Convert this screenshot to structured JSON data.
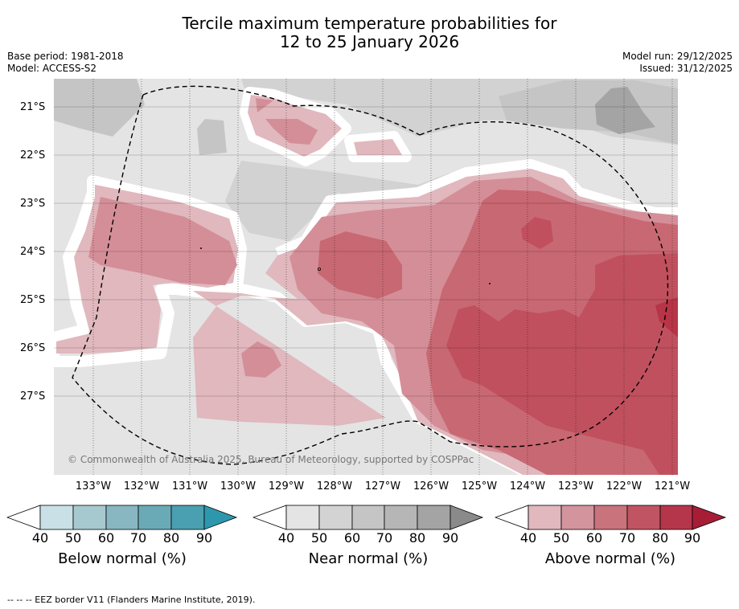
{
  "title": {
    "line1": "Tercile maximum temperature probabilities for",
    "line2": "12 to 25 January 2026"
  },
  "meta": {
    "base_period": "Base period: 1981-2018",
    "model": "Model: ACCESS-S2",
    "model_run": "Model run: 29/12/2025",
    "issued": "Issued: 31/12/2025"
  },
  "map": {
    "lat_labels": [
      "21°S",
      "22°S",
      "23°S",
      "24°S",
      "25°S",
      "26°S",
      "27°S"
    ],
    "lon_labels": [
      "133°W",
      "132°W",
      "131°W",
      "130°W",
      "129°W",
      "128°W",
      "127°W",
      "126°W",
      "125°W",
      "124°W",
      "123°W",
      "122°W",
      "121°W"
    ],
    "copyright": "© Commonwealth of Australia 2025, Bureau of Meteorology, supported by COSPPac",
    "colors": {
      "near_background": "#e4e4e4",
      "near_50": "#d2d2d2",
      "near_60": "#c5c5c5",
      "near_80": "#a4a4a4",
      "above_40": "#e0b8be",
      "above_50": "#d48e98",
      "above_60": "#c86873",
      "above_70": "#c0505e",
      "above_80": "#b83447"
    }
  },
  "colorbars": [
    {
      "title": "Below normal (%)",
      "ticks": [
        "40",
        "50",
        "60",
        "70",
        "80",
        "90"
      ],
      "colors": [
        "#ffffff",
        "#c9e0e6",
        "#a6c9cf",
        "#88b7c2",
        "#6aaab7",
        "#4a9fb0",
        "#2d98ad"
      ]
    },
    {
      "title": "Near normal (%)",
      "ticks": [
        "40",
        "50",
        "60",
        "70",
        "80",
        "90"
      ],
      "colors": [
        "#ffffff",
        "#e4e4e4",
        "#d3d3d3",
        "#c5c5c5",
        "#b6b6b6",
        "#a4a4a4",
        "#8a8a8a"
      ]
    },
    {
      "title": "Above normal (%)",
      "ticks": [
        "40",
        "50",
        "60",
        "70",
        "80",
        "90"
      ],
      "colors": [
        "#ffffff",
        "#e0b8be",
        "#d4949d",
        "#c9737d",
        "#c05463",
        "#b5364b",
        "#a81d36"
      ]
    }
  ],
  "footnote": "-- -- -- EEZ border V11 (Flanders Marine Institute, 2019)."
}
